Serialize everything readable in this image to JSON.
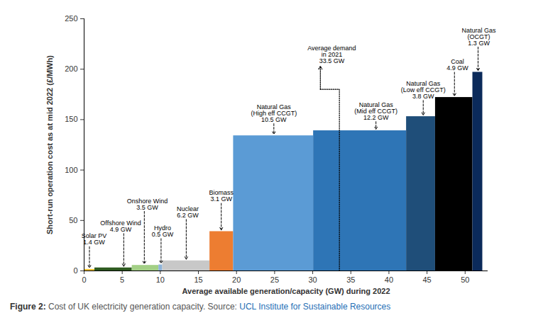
{
  "chart_data": {
    "type": "bar",
    "x_label": "Average available generation/capacity (GW) during 2022",
    "y_label": "Short-run operation cost as at mid 2022 (£/MWh)",
    "xlim": [
      0,
      53
    ],
    "xticks": [
      0,
      5,
      10,
      15,
      20,
      25,
      30,
      35,
      40,
      45,
      50
    ],
    "ylim": [
      0,
      250
    ],
    "yticks": [
      0,
      50,
      100,
      150,
      200,
      250
    ],
    "grid": false,
    "segments": [
      {
        "label": [
          "Solar PV",
          "1.4 GW"
        ],
        "width": 1.4,
        "value": 1.5,
        "color": "#f2c12e"
      },
      {
        "label": [
          "Offshore Wind",
          "4.9 GW"
        ],
        "width": 4.9,
        "value": 3,
        "color": "#2d5a1f"
      },
      {
        "label": [
          "Onshore Wind",
          "3.5 GW"
        ],
        "width": 3.5,
        "value": 5.5,
        "color": "#a3cf86"
      },
      {
        "label": [
          "Hydro",
          "0.5 GW"
        ],
        "width": 0.5,
        "value": 6,
        "color": "#8fb4d9"
      },
      {
        "label": [
          "Nuclear",
          "6.2 GW"
        ],
        "width": 6.2,
        "value": 10,
        "color": "#c8c8c8"
      },
      {
        "label": [
          "Biomass",
          "3.1 GW"
        ],
        "width": 3.1,
        "value": 39,
        "color": "#ed7d31"
      },
      {
        "label": [
          "Natural Gas",
          "(High eff CCGT)",
          "10.5 GW"
        ],
        "width": 10.5,
        "value": 134,
        "color": "#5b9bd5"
      },
      {
        "label": [
          "Natural Gas",
          "(Mid eff CCGT)",
          "12.2 GW"
        ],
        "width": 12.2,
        "value": 139,
        "color": "#2e75b6"
      },
      {
        "label": [
          "Natural Gas",
          "(Low eff CCGT)",
          "3.8 GW"
        ],
        "width": 3.8,
        "value": 153,
        "color": "#1f4e79"
      },
      {
        "label": [
          "Coal",
          "4.9 GW"
        ],
        "width": 4.9,
        "value": 172,
        "color": "#000000"
      },
      {
        "label": [
          "Natural Gas",
          "(OCGT)",
          "1.3 GW"
        ],
        "width": 1.3,
        "value": 197,
        "color": "#0b2a5a"
      }
    ],
    "annotations": [
      {
        "label": [
          "Average demand",
          "in 2021",
          "33.5 GW"
        ],
        "x": 33.5
      }
    ],
    "caption": {
      "label": "Figure 2:",
      "text": "Cost of UK electricity generation capacity. Source:",
      "source": "UCL Institute for Sustainable Resources"
    }
  }
}
